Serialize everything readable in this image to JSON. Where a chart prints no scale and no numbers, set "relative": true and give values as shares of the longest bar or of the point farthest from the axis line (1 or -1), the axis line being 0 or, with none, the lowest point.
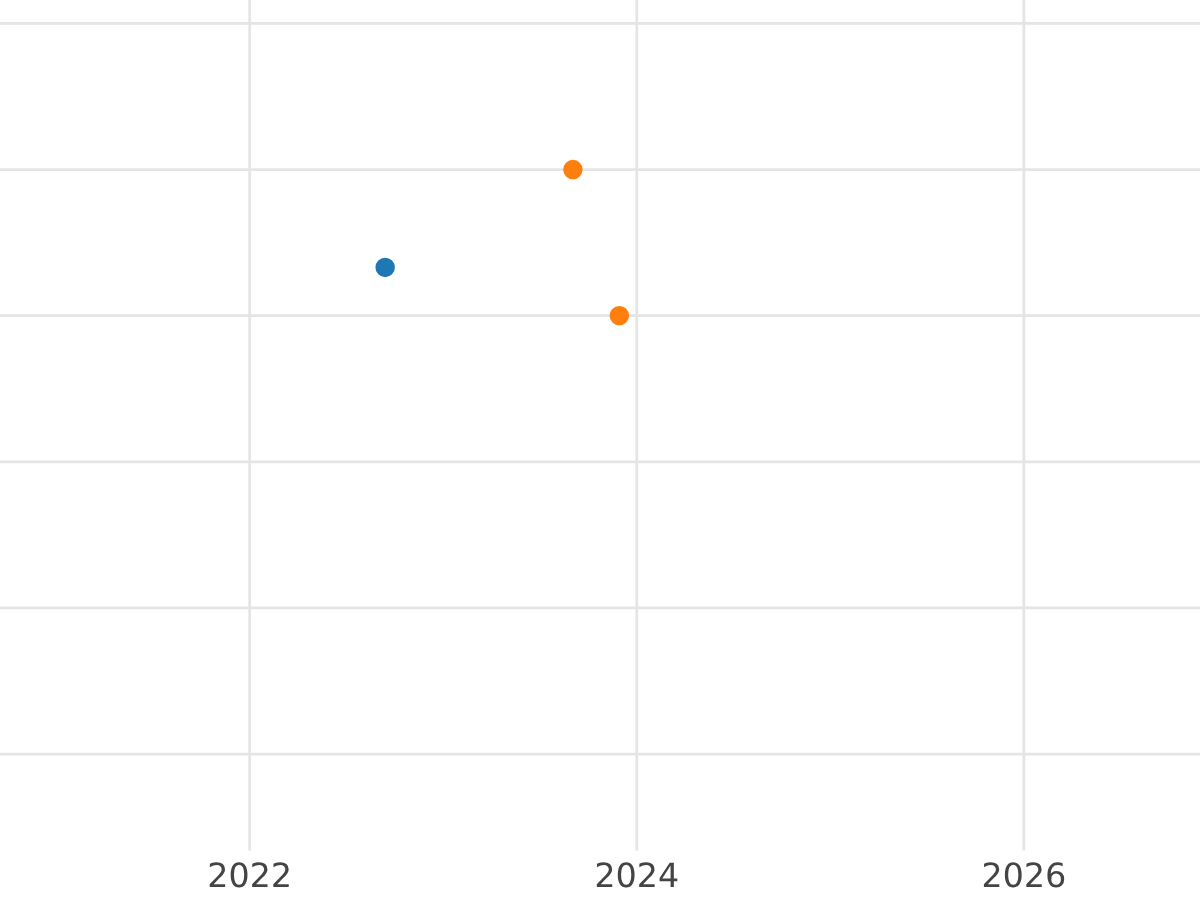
{
  "chart_data": {
    "type": "scatter",
    "relative": true,
    "grid": true,
    "tick_labels": "x",
    "marker": "circle",
    "xlim": [
      2020.71,
      2026.91
    ],
    "xticks": [
      2022,
      2024,
      2026
    ],
    "series": [
      {
        "color": "#1f77b4",
        "x": [
          2022.7
        ],
        "values": [
          0.33
        ]
      },
      {
        "color": "#ff7f0e",
        "x": [
          2023.67,
          2023.91
        ],
        "values": [
          1,
          0
        ]
      }
    ]
  }
}
